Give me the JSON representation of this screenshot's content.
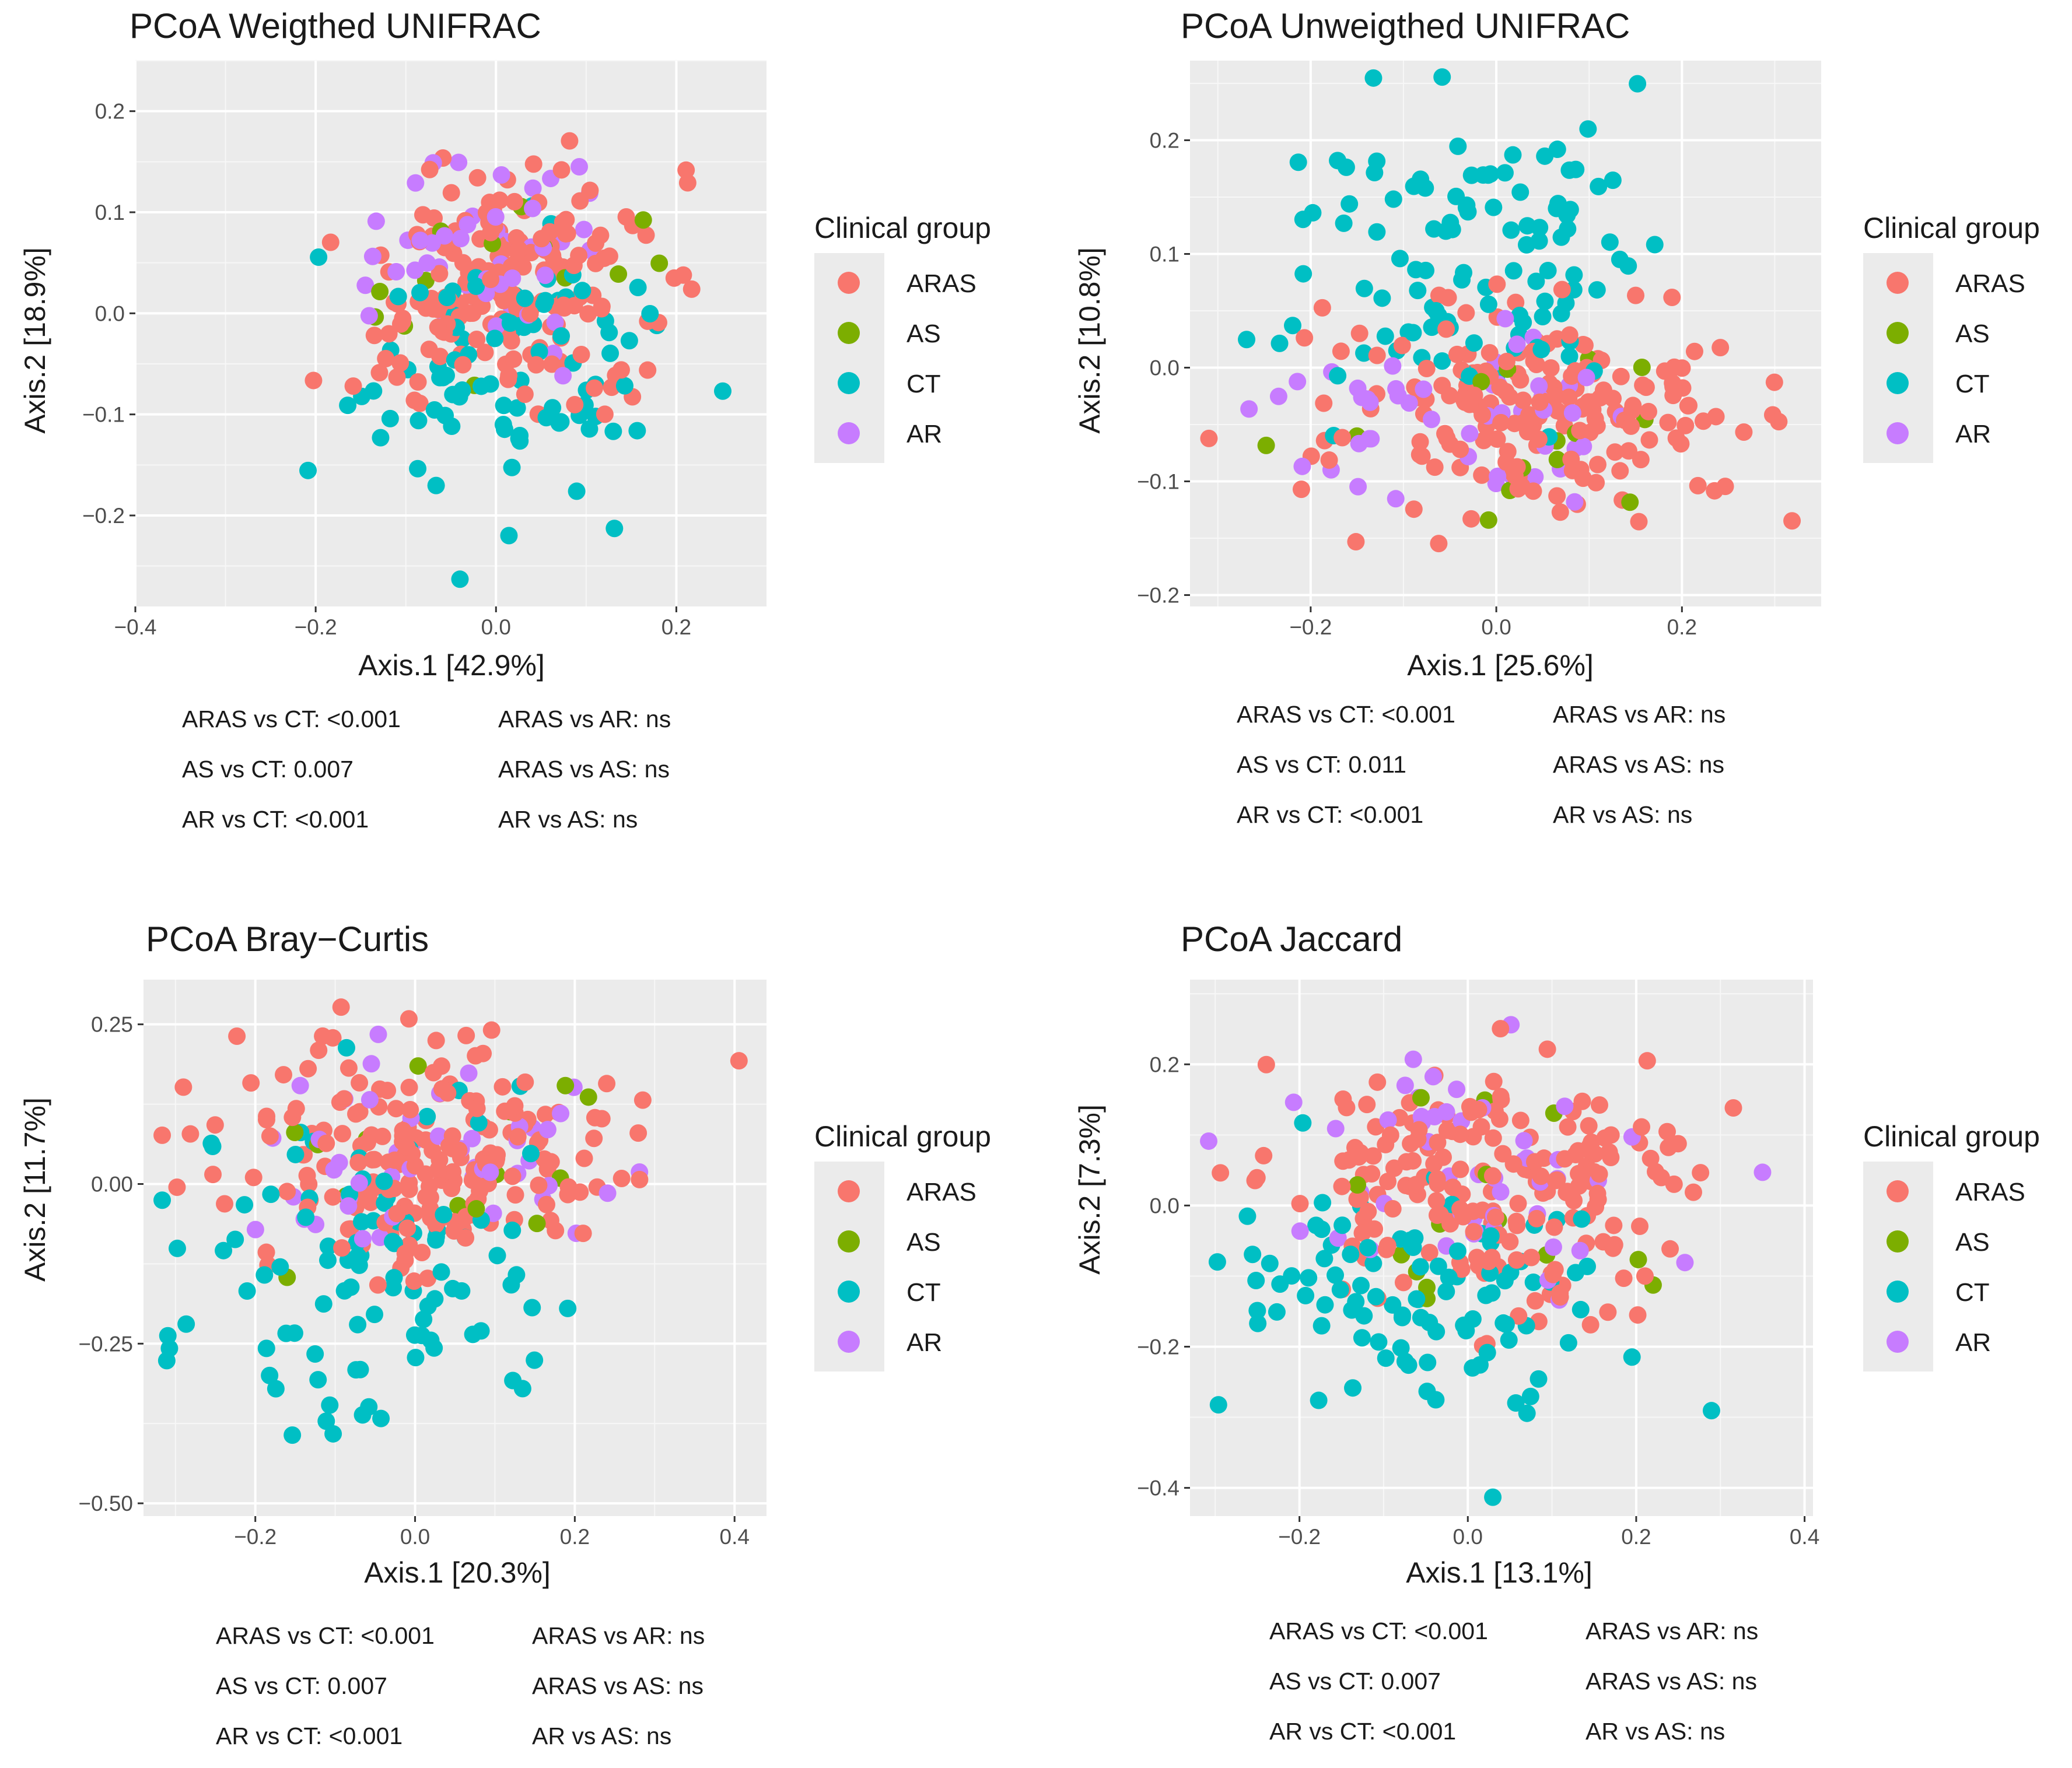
{
  "legend": {
    "title": "Clinical group",
    "groups": [
      {
        "name": "ARAS",
        "color": "#F8766D"
      },
      {
        "name": "AS",
        "color": "#7CAE00"
      },
      {
        "name": "CT",
        "color": "#00BFC4"
      },
      {
        "name": "AR",
        "color": "#C77CFF"
      }
    ]
  },
  "chart_data": [
    {
      "type": "scatter",
      "title": "PCoA Weigthed UNIFRAC",
      "xlabel": "Axis.1   [42.9%]",
      "ylabel": "Axis.2   [18.9%]",
      "xlim": [
        -0.4,
        0.3
      ],
      "ylim": [
        -0.29,
        0.25
      ],
      "xticks": [
        -0.4,
        -0.2,
        0.0,
        0.2
      ],
      "xtick_labels": [
        "−0.4",
        "−0.2",
        "0.0",
        "0.2"
      ],
      "yticks": [
        -0.2,
        -0.1,
        0.0,
        0.1,
        0.2
      ],
      "ytick_labels": [
        "−0.2",
        "−0.1",
        "0.0",
        "0.1",
        "0.2"
      ],
      "stats": [
        "ARAS vs CT: <0.001",
        "AS vs CT: 0.007",
        "AR vs CT: <0.001",
        "ARAS vs AR: ns",
        "ARAS vs AS: ns",
        "AR vs AS: ns"
      ],
      "seed": 11,
      "series": [
        {
          "name": "ARAS",
          "n": 190,
          "cx": 0.02,
          "cy": 0.03,
          "sx": 0.11,
          "sy": 0.075
        },
        {
          "name": "AS",
          "n": 14,
          "cx": 0.05,
          "cy": 0.01,
          "sx": 0.12,
          "sy": 0.06
        },
        {
          "name": "CT",
          "n": 95,
          "cx": 0.02,
          "cy": -0.06,
          "sx": 0.12,
          "sy": 0.09
        },
        {
          "name": "AR",
          "n": 50,
          "cx": 0.0,
          "cy": 0.07,
          "sx": 0.12,
          "sy": 0.07
        }
      ]
    },
    {
      "type": "scatter",
      "title": "PCoA Unweigthed UNIFRAC",
      "xlabel": "Axis.1   [25.6%]",
      "ylabel": "Axis.2   [10.8%]",
      "xlim": [
        -0.33,
        0.35
      ],
      "ylim": [
        -0.21,
        0.27
      ],
      "xticks": [
        -0.2,
        0.0,
        0.2
      ],
      "xtick_labels": [
        "−0.2",
        "0.0",
        "0.2"
      ],
      "yticks": [
        -0.2,
        -0.1,
        0.0,
        0.1,
        0.2
      ],
      "ytick_labels": [
        "−0.2",
        "−0.1",
        "0.0",
        "0.1",
        "0.2"
      ],
      "stats": [
        "ARAS vs CT: <0.001",
        "AS vs CT: 0.011",
        "AR vs CT: <0.001",
        "ARAS vs AR: ns",
        "ARAS vs AS: ns",
        "AR vs AS: ns"
      ],
      "seed": 23,
      "series": [
        {
          "name": "ARAS",
          "n": 190,
          "cx": 0.05,
          "cy": -0.04,
          "sx": 0.14,
          "sy": 0.06
        },
        {
          "name": "AS",
          "n": 14,
          "cx": 0.0,
          "cy": -0.05,
          "sx": 0.12,
          "sy": 0.06
        },
        {
          "name": "CT",
          "n": 110,
          "cx": -0.02,
          "cy": 0.09,
          "sx": 0.13,
          "sy": 0.09
        },
        {
          "name": "AR",
          "n": 50,
          "cx": -0.05,
          "cy": -0.05,
          "sx": 0.13,
          "sy": 0.06
        }
      ]
    },
    {
      "type": "scatter",
      "title": "PCoA Bray−Curtis",
      "xlabel": "Axis.1   [20.3%]",
      "ylabel": "Axis.2   [11.7%]",
      "xlim": [
        -0.34,
        0.44
      ],
      "ylim": [
        -0.52,
        0.32
      ],
      "xticks": [
        -0.2,
        0.0,
        0.2,
        0.4
      ],
      "xtick_labels": [
        "−0.2",
        "0.0",
        "0.2",
        "0.4"
      ],
      "yticks": [
        -0.5,
        -0.25,
        0.0,
        0.25
      ],
      "ytick_labels": [
        "−0.50",
        "−0.25",
        "0.00",
        "0.25"
      ],
      "stats": [
        "ARAS vs CT: <0.001",
        "AS vs CT: 0.007",
        "AR vs CT: <0.001",
        "ARAS vs AR: ns",
        "ARAS vs AS: ns",
        "AR vs AS: ns"
      ],
      "seed": 37,
      "series": [
        {
          "name": "ARAS",
          "n": 200,
          "cx": 0.02,
          "cy": 0.04,
          "sx": 0.17,
          "sy": 0.12
        },
        {
          "name": "AS",
          "n": 14,
          "cx": 0.05,
          "cy": 0.02,
          "sx": 0.17,
          "sy": 0.12
        },
        {
          "name": "CT",
          "n": 100,
          "cx": -0.05,
          "cy": -0.12,
          "sx": 0.16,
          "sy": 0.16
        },
        {
          "name": "AR",
          "n": 50,
          "cx": 0.03,
          "cy": 0.04,
          "sx": 0.18,
          "sy": 0.12
        }
      ]
    },
    {
      "type": "scatter",
      "title": "PCoA Jaccard",
      "xlabel": "Axis.1   [13.1%]",
      "ylabel": "Axis.2   [7.3%]",
      "xlim": [
        -0.33,
        0.41
      ],
      "ylim": [
        -0.44,
        0.32
      ],
      "xticks": [
        -0.2,
        0.0,
        0.2,
        0.4
      ],
      "xtick_labels": [
        "−0.2",
        "0.0",
        "0.2",
        "0.4"
      ],
      "yticks": [
        -0.4,
        -0.2,
        0.0,
        0.2
      ],
      "ytick_labels": [
        "−0.4",
        "−0.2",
        "0.0",
        "0.2"
      ],
      "stats": [
        "ARAS vs CT: <0.001",
        "AS vs CT: 0.007",
        "AR vs CT: <0.001",
        "ARAS vs AR: ns",
        "ARAS vs AS: ns",
        "AR vs AS: ns"
      ],
      "seed": 53,
      "series": [
        {
          "name": "ARAS",
          "n": 200,
          "cx": 0.03,
          "cy": 0.03,
          "sx": 0.17,
          "sy": 0.12
        },
        {
          "name": "AS",
          "n": 14,
          "cx": 0.05,
          "cy": 0.0,
          "sx": 0.17,
          "sy": 0.12
        },
        {
          "name": "CT",
          "n": 100,
          "cx": -0.04,
          "cy": -0.12,
          "sx": 0.16,
          "sy": 0.13
        },
        {
          "name": "AR",
          "n": 50,
          "cx": 0.0,
          "cy": 0.03,
          "sx": 0.17,
          "sy": 0.11
        }
      ]
    }
  ]
}
